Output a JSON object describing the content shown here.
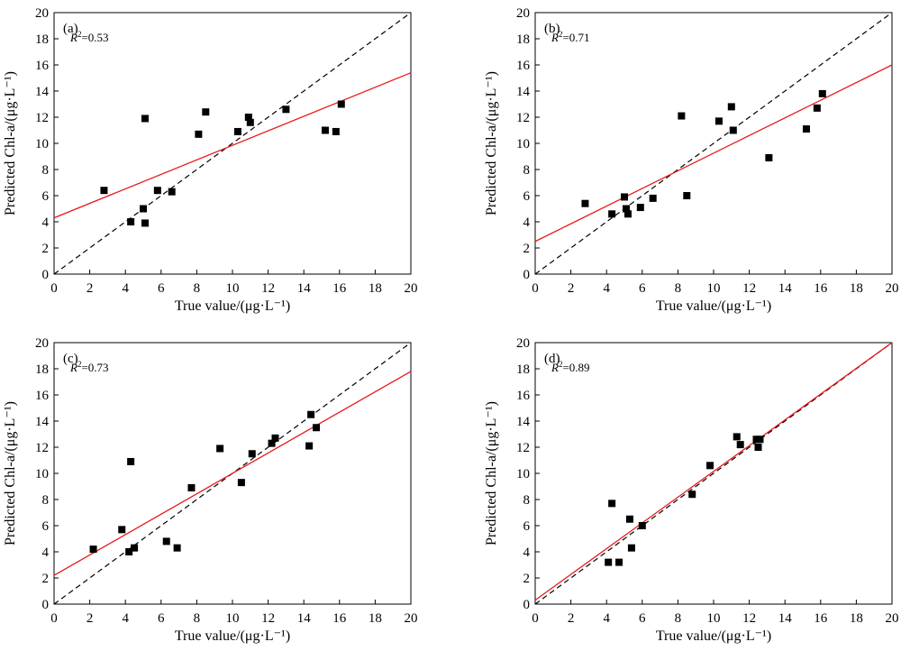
{
  "chart_data": [
    {
      "type": "scatter",
      "panel_label": "(a)",
      "r2_prefix": "R",
      "r2_sup": "2",
      "r2_value": "=0.53",
      "xlabel": "True value/(μg·L⁻¹)",
      "ylabel": "Predicted Chl-a/(μg·L⁻¹)",
      "xlim": [
        0,
        20
      ],
      "ylim": [
        0,
        20
      ],
      "xticks": [
        "0",
        "2",
        "4",
        "6",
        "8",
        "10",
        "12",
        "14",
        "16",
        "18",
        "20"
      ],
      "yticks": [
        "0",
        "2",
        "4",
        "6",
        "8",
        "10",
        "12",
        "14",
        "16",
        "18",
        "20"
      ],
      "fit_line": {
        "x": [
          0,
          20
        ],
        "y": [
          4.3,
          15.4
        ],
        "color": "#e8191b"
      },
      "identity_line": {
        "x": [
          0,
          20
        ],
        "y": [
          0,
          20
        ],
        "style": "dashed"
      },
      "points": {
        "x": [
          2.8,
          4.3,
          5.0,
          5.1,
          5.1,
          5.8,
          6.6,
          8.1,
          8.5,
          10.3,
          10.9,
          11.0,
          13.0,
          15.2,
          15.8,
          16.1
        ],
        "y": [
          6.4,
          4.0,
          5.0,
          11.9,
          3.9,
          6.4,
          6.3,
          10.7,
          12.4,
          10.9,
          12.0,
          11.6,
          12.6,
          11.0,
          10.9,
          13.0
        ]
      }
    },
    {
      "type": "scatter",
      "panel_label": "(b)",
      "r2_prefix": "R",
      "r2_sup": "2",
      "r2_value": "=0.71",
      "xlabel": "True value/(μg·L⁻¹)",
      "ylabel": "Predicted Chl-a/(μg·L⁻¹)",
      "xlim": [
        0,
        20
      ],
      "ylim": [
        0,
        20
      ],
      "xticks": [
        "0",
        "2",
        "4",
        "6",
        "8",
        "10",
        "12",
        "14",
        "16",
        "18",
        "20"
      ],
      "yticks": [
        "0",
        "2",
        "4",
        "6",
        "8",
        "10",
        "12",
        "14",
        "16",
        "18",
        "20"
      ],
      "fit_line": {
        "x": [
          0,
          20
        ],
        "y": [
          2.5,
          16.0
        ],
        "color": "#e8191b"
      },
      "identity_line": {
        "x": [
          0,
          20
        ],
        "y": [
          0,
          20
        ],
        "style": "dashed"
      },
      "points": {
        "x": [
          2.8,
          4.3,
          5.0,
          5.1,
          5.2,
          5.9,
          6.6,
          8.2,
          8.5,
          10.3,
          11.0,
          11.1,
          13.1,
          15.2,
          15.8,
          16.1
        ],
        "y": [
          5.4,
          4.6,
          5.9,
          5.0,
          4.6,
          5.1,
          5.8,
          12.1,
          6.0,
          11.7,
          12.8,
          11.0,
          8.9,
          11.1,
          12.7,
          13.8
        ]
      }
    },
    {
      "type": "scatter",
      "panel_label": "(c)",
      "r2_prefix": "R",
      "r2_sup": "2",
      "r2_value": "=0.73",
      "xlabel": "True value/(μg·L⁻¹)",
      "ylabel": "Predicted Chl-a/(μg·L⁻¹)",
      "xlim": [
        0,
        20
      ],
      "ylim": [
        0,
        20
      ],
      "xticks": [
        "0",
        "2",
        "4",
        "6",
        "8",
        "10",
        "12",
        "14",
        "16",
        "18",
        "20"
      ],
      "yticks": [
        "0",
        "2",
        "4",
        "6",
        "8",
        "10",
        "12",
        "14",
        "16",
        "18",
        "20"
      ],
      "fit_line": {
        "x": [
          0,
          20
        ],
        "y": [
          2.2,
          17.8
        ],
        "color": "#e8191b"
      },
      "identity_line": {
        "x": [
          0,
          20
        ],
        "y": [
          0,
          20
        ],
        "style": "dashed"
      },
      "points": {
        "x": [
          2.2,
          3.8,
          4.2,
          4.3,
          4.5,
          6.3,
          6.9,
          7.7,
          9.3,
          10.5,
          11.1,
          12.2,
          12.4,
          14.3,
          14.4,
          14.7
        ],
        "y": [
          4.2,
          5.7,
          4.0,
          10.9,
          4.3,
          4.8,
          4.3,
          8.9,
          11.9,
          9.3,
          11.5,
          12.3,
          12.7,
          12.1,
          14.5,
          13.5
        ]
      }
    },
    {
      "type": "scatter",
      "panel_label": "(d)",
      "r2_prefix": "R",
      "r2_sup": "2",
      "r2_value": "=0.89",
      "xlabel": "True value/(μg·L⁻¹)",
      "ylabel": "Predicted Chl-a/(μg·L⁻¹)",
      "xlim": [
        0,
        20
      ],
      "ylim": [
        0,
        20
      ],
      "xticks": [
        "0",
        "2",
        "4",
        "6",
        "8",
        "10",
        "12",
        "14",
        "16",
        "18",
        "20"
      ],
      "yticks": [
        "0",
        "2",
        "4",
        "6",
        "8",
        "10",
        "12",
        "14",
        "16",
        "18",
        "20"
      ],
      "fit_line": {
        "x": [
          0,
          20
        ],
        "y": [
          0.3,
          20.0
        ],
        "color": "#e8191b"
      },
      "identity_line": {
        "x": [
          0,
          20
        ],
        "y": [
          0,
          20
        ],
        "style": "dashed"
      },
      "points": {
        "x": [
          4.1,
          4.3,
          4.7,
          5.3,
          5.4,
          6.0,
          8.8,
          9.8,
          11.3,
          11.5,
          12.4,
          12.5,
          12.6
        ],
        "y": [
          3.2,
          7.7,
          3.2,
          6.5,
          4.3,
          6.0,
          8.4,
          10.6,
          12.8,
          12.2,
          12.6,
          12.0,
          12.6
        ]
      }
    }
  ]
}
